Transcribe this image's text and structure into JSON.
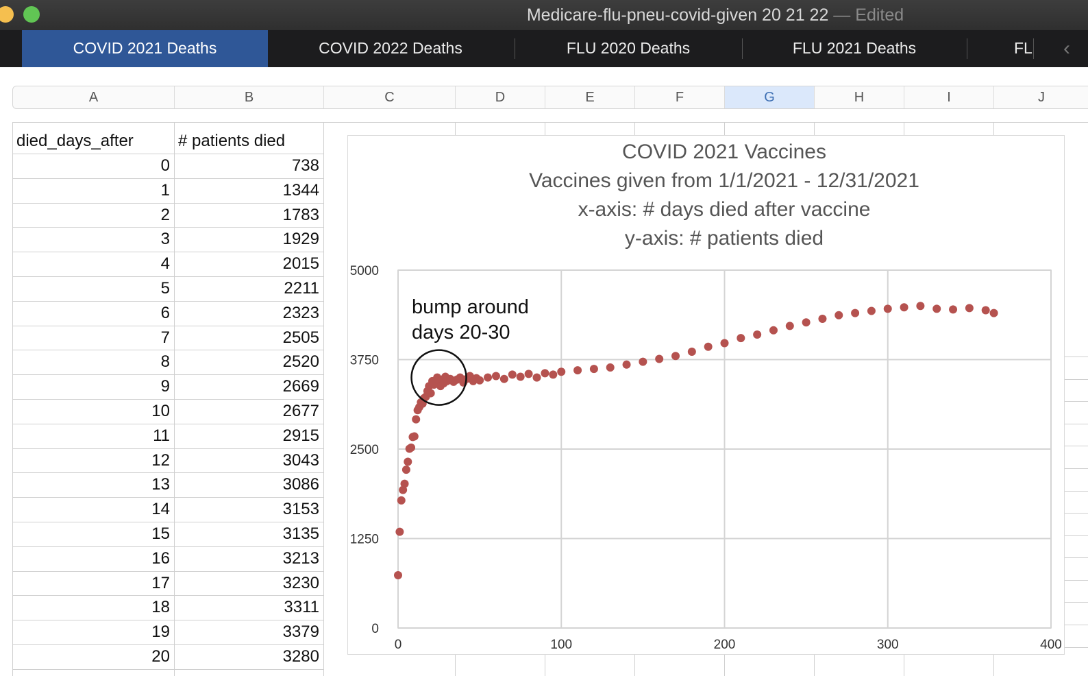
{
  "window": {
    "title": "Medicare-flu-pneu-covid-given 20 21 22",
    "title_sep": " — ",
    "status": "Edited"
  },
  "tabs": [
    {
      "label": "COVID 2021 Deaths",
      "active": true
    },
    {
      "label": "COVID 2022 Deaths",
      "active": false
    },
    {
      "label": "FLU 2020 Deaths",
      "active": false
    },
    {
      "label": "FLU 2021 Deaths",
      "active": false
    },
    {
      "label": "FL",
      "active": false
    }
  ],
  "columns": [
    "A",
    "B",
    "C",
    "D",
    "E",
    "F",
    "G",
    "H",
    "I",
    "J"
  ],
  "selected_column": "G",
  "table": {
    "headers": [
      "died_days_after",
      "# patients died"
    ],
    "rows": [
      [
        "0",
        "738"
      ],
      [
        "1",
        "1344"
      ],
      [
        "2",
        "1783"
      ],
      [
        "3",
        "1929"
      ],
      [
        "4",
        "2015"
      ],
      [
        "5",
        "2211"
      ],
      [
        "6",
        "2323"
      ],
      [
        "7",
        "2505"
      ],
      [
        "8",
        "2520"
      ],
      [
        "9",
        "2669"
      ],
      [
        "10",
        "2677"
      ],
      [
        "11",
        "2915"
      ],
      [
        "12",
        "3043"
      ],
      [
        "13",
        "3086"
      ],
      [
        "14",
        "3153"
      ],
      [
        "15",
        "3135"
      ],
      [
        "16",
        "3213"
      ],
      [
        "17",
        "3230"
      ],
      [
        "18",
        "3311"
      ],
      [
        "19",
        "3379"
      ],
      [
        "20",
        "3280"
      ]
    ]
  },
  "chart_data": {
    "type": "scatter",
    "title_lines": [
      "COVID 2021 Vaccines",
      "Vaccines given from 1/1/2021 - 12/31/2021",
      "x-axis: # days died after vaccine",
      "y-axis: # patients died"
    ],
    "xlim": [
      0,
      400
    ],
    "ylim": [
      0,
      5000
    ],
    "x_ticks": [
      "0",
      "100",
      "200",
      "300",
      "400"
    ],
    "y_ticks": [
      "5000",
      "3750",
      "2500",
      "1250",
      "0"
    ],
    "grid": true,
    "marker_color": "#b5524f",
    "annotation": {
      "lines": [
        "bump around",
        "days 20-30"
      ],
      "circle_center_x": 25,
      "circle_center_y": 3500
    },
    "series": [
      {
        "x": [
          0,
          1,
          2,
          3,
          4,
          5,
          6,
          7,
          8,
          9,
          10,
          11,
          12,
          13,
          14,
          15,
          16,
          17,
          18,
          19,
          20,
          21,
          22,
          23,
          24,
          25,
          26,
          27,
          28,
          29,
          30,
          32,
          34,
          36,
          38,
          40,
          42,
          44,
          46,
          48,
          50,
          55,
          60,
          65,
          70,
          75,
          80,
          85,
          90,
          95,
          100,
          110,
          120,
          130,
          140,
          150,
          160,
          170,
          180,
          190,
          200,
          210,
          220,
          230,
          240,
          250,
          260,
          270,
          280,
          290,
          300,
          310,
          320,
          330,
          340,
          350,
          360,
          365
        ],
        "y": [
          738,
          1344,
          1783,
          1929,
          2015,
          2211,
          2323,
          2505,
          2520,
          2669,
          2677,
          2915,
          3043,
          3086,
          3153,
          3135,
          3213,
          3230,
          3311,
          3379,
          3280,
          3450,
          3400,
          3430,
          3500,
          3460,
          3380,
          3470,
          3420,
          3510,
          3450,
          3480,
          3440,
          3470,
          3500,
          3430,
          3480,
          3520,
          3450,
          3490,
          3460,
          3500,
          3520,
          3480,
          3540,
          3510,
          3550,
          3500,
          3560,
          3540,
          3580,
          3600,
          3620,
          3640,
          3680,
          3720,
          3760,
          3800,
          3860,
          3930,
          3980,
          4050,
          4100,
          4160,
          4220,
          4270,
          4320,
          4370,
          4400,
          4430,
          4460,
          4480,
          4500,
          4460,
          4450,
          4470,
          4440,
          4400
        ]
      }
    ]
  }
}
